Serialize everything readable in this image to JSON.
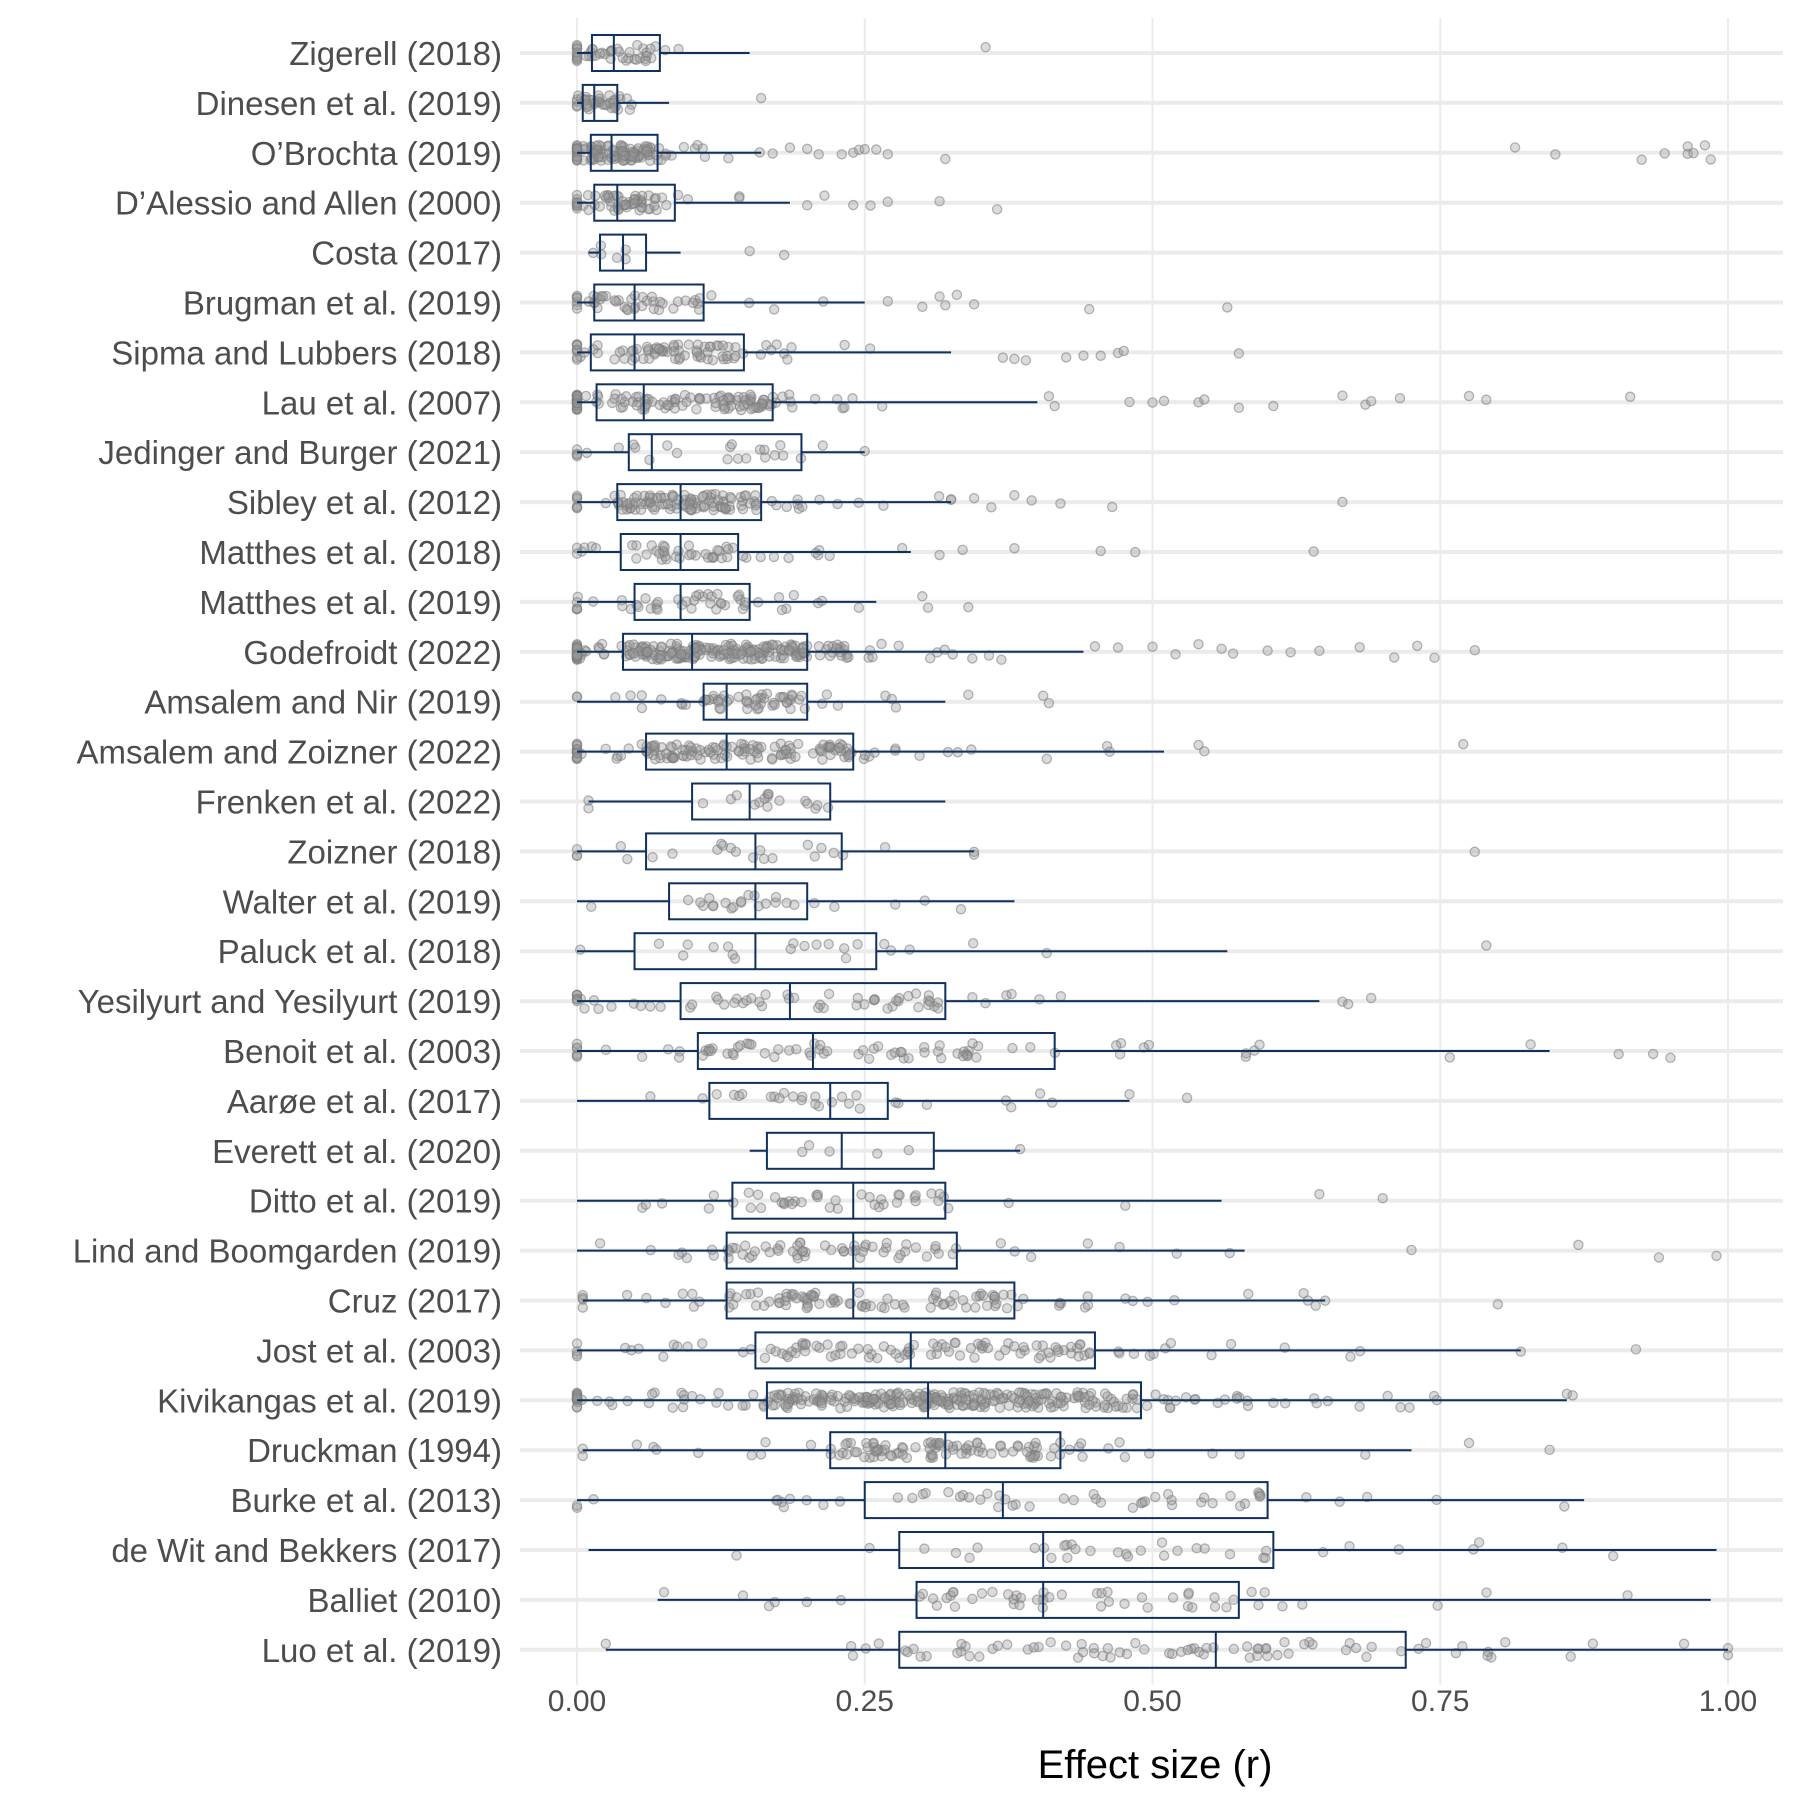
{
  "chart_data": {
    "type": "boxplot",
    "xlabel": "Effect size (r)",
    "xlim": [
      0,
      1
    ],
    "xticks": [
      0,
      0.25,
      0.5,
      0.75,
      1
    ],
    "xtick_labels": [
      "0.00",
      "0.25",
      "0.50",
      "0.75",
      "1.00"
    ],
    "grid": true,
    "legend": "none",
    "colors": {
      "box": "#10305e",
      "points": "#999999",
      "grid": "#ebebeb",
      "label": "#4d4d4d"
    },
    "studies": [
      {
        "label": "Zigerell (2018)",
        "whisker_low": 0.0,
        "q1": 0.013,
        "median": 0.032,
        "q3": 0.072,
        "whisker_high": 0.15,
        "n_points": 45,
        "outliers": [
          0.355
        ]
      },
      {
        "label": "Dinesen et al. (2019)",
        "whisker_low": 0.0,
        "q1": 0.005,
        "median": 0.015,
        "q3": 0.035,
        "whisker_high": 0.08,
        "n_points": 40,
        "outliers": [
          0.16
        ]
      },
      {
        "label": "O’Brochta (2019)",
        "whisker_low": 0.0,
        "q1": 0.012,
        "median": 0.03,
        "q3": 0.07,
        "whisker_high": 0.16,
        "n_points": 140,
        "outliers": [
          0.17,
          0.185,
          0.2,
          0.21,
          0.23,
          0.24,
          0.245,
          0.25,
          0.26,
          0.27,
          0.32,
          0.815,
          0.85,
          0.925,
          0.945,
          0.965,
          0.965,
          0.97,
          0.98,
          0.985
        ]
      },
      {
        "label": "D’Alessio and Allen (2000)",
        "whisker_low": 0.0,
        "q1": 0.015,
        "median": 0.035,
        "q3": 0.085,
        "whisker_high": 0.185,
        "n_points": 70,
        "outliers": [
          0.2,
          0.215,
          0.24,
          0.255,
          0.27,
          0.315,
          0.365
        ]
      },
      {
        "label": "Costa (2017)",
        "whisker_low": 0.01,
        "q1": 0.02,
        "median": 0.04,
        "q3": 0.06,
        "whisker_high": 0.09,
        "n_points": 8,
        "outliers": [
          0.15,
          0.18
        ]
      },
      {
        "label": "Brugman et al. (2019)",
        "whisker_low": 0.0,
        "q1": 0.015,
        "median": 0.05,
        "q3": 0.11,
        "whisker_high": 0.25,
        "n_points": 55,
        "outliers": [
          0.27,
          0.3,
          0.315,
          0.32,
          0.33,
          0.345,
          0.445,
          0.565
        ]
      },
      {
        "label": "Sipma and Lubbers (2018)",
        "whisker_low": 0.0,
        "q1": 0.012,
        "median": 0.05,
        "q3": 0.145,
        "whisker_high": 0.325,
        "n_points": 90,
        "outliers": [
          0.37,
          0.38,
          0.39,
          0.425,
          0.44,
          0.455,
          0.47,
          0.475,
          0.575
        ]
      },
      {
        "label": "Lau et al. (2007)",
        "whisker_low": 0.0,
        "q1": 0.017,
        "median": 0.058,
        "q3": 0.17,
        "whisker_high": 0.4,
        "n_points": 140,
        "outliers": [
          0.41,
          0.415,
          0.48,
          0.5,
          0.51,
          0.54,
          0.545,
          0.575,
          0.605,
          0.665,
          0.685,
          0.69,
          0.715,
          0.775,
          0.79,
          0.915
        ]
      },
      {
        "label": "Jedinger and Burger (2021)",
        "whisker_low": 0.0,
        "q1": 0.045,
        "median": 0.065,
        "q3": 0.195,
        "whisker_high": 0.25,
        "n_points": 25,
        "outliers": []
      },
      {
        "label": "Sibley et al. (2012)",
        "whisker_low": 0.0,
        "q1": 0.035,
        "median": 0.09,
        "q3": 0.16,
        "whisker_high": 0.325,
        "n_points": 130,
        "outliers": [
          0.345,
          0.36,
          0.38,
          0.395,
          0.42,
          0.465,
          0.665
        ]
      },
      {
        "label": "Matthes et al. (2018)",
        "whisker_low": 0.0,
        "q1": 0.038,
        "median": 0.09,
        "q3": 0.14,
        "whisker_high": 0.29,
        "n_points": 55,
        "outliers": [
          0.315,
          0.335,
          0.38,
          0.455,
          0.485,
          0.64
        ]
      },
      {
        "label": "Matthes et al. (2019)",
        "whisker_low": 0.0,
        "q1": 0.05,
        "median": 0.09,
        "q3": 0.15,
        "whisker_high": 0.26,
        "n_points": 50,
        "outliers": [
          0.3,
          0.305,
          0.34
        ]
      },
      {
        "label": "Godefroidt (2022)",
        "whisker_low": 0.0,
        "q1": 0.04,
        "median": 0.1,
        "q3": 0.2,
        "whisker_high": 0.44,
        "n_points": 260,
        "outliers": [
          0.45,
          0.47,
          0.5,
          0.52,
          0.54,
          0.56,
          0.57,
          0.6,
          0.62,
          0.645,
          0.68,
          0.71,
          0.73,
          0.745,
          0.78
        ]
      },
      {
        "label": "Amsalem and Nir (2019)",
        "whisker_low": 0.0,
        "q1": 0.11,
        "median": 0.13,
        "q3": 0.2,
        "whisker_high": 0.32,
        "n_points": 65,
        "outliers": [
          0.34,
          0.405,
          0.41
        ]
      },
      {
        "label": "Amsalem and Zoizner (2022)",
        "whisker_low": 0.0,
        "q1": 0.06,
        "median": 0.13,
        "q3": 0.24,
        "whisker_high": 0.51,
        "n_points": 150,
        "outliers": [
          0.54,
          0.545,
          0.77
        ]
      },
      {
        "label": "Frenken et al. (2022)",
        "whisker_low": 0.01,
        "q1": 0.1,
        "median": 0.15,
        "q3": 0.22,
        "whisker_high": 0.32,
        "n_points": 18,
        "outliers": []
      },
      {
        "label": "Zoizner (2018)",
        "whisker_low": 0.0,
        "q1": 0.06,
        "median": 0.155,
        "q3": 0.23,
        "whisker_high": 0.345,
        "n_points": 25,
        "outliers": [
          0.78
        ]
      },
      {
        "label": "Walter et al. (2019)",
        "whisker_low": 0.0,
        "q1": 0.08,
        "median": 0.155,
        "q3": 0.2,
        "whisker_high": 0.38,
        "n_points": 25,
        "outliers": []
      },
      {
        "label": "Paluck et al. (2018)",
        "whisker_low": 0.0,
        "q1": 0.05,
        "median": 0.155,
        "q3": 0.26,
        "whisker_high": 0.565,
        "n_points": 22,
        "outliers": [
          0.79
        ]
      },
      {
        "label": "Yesilyurt and Yesilyurt (2019)",
        "whisker_low": 0.0,
        "q1": 0.09,
        "median": 0.185,
        "q3": 0.32,
        "whisker_high": 0.645,
        "n_points": 65,
        "outliers": [
          0.665,
          0.67,
          0.69
        ]
      },
      {
        "label": "Benoit et al. (2003)",
        "whisker_low": 0.0,
        "q1": 0.105,
        "median": 0.205,
        "q3": 0.415,
        "whisker_high": 0.845,
        "n_points": 80,
        "outliers": [
          0.905,
          0.935,
          0.95
        ]
      },
      {
        "label": "Aarøe et al. (2017)",
        "whisker_low": 0.0,
        "q1": 0.115,
        "median": 0.22,
        "q3": 0.27,
        "whisker_high": 0.48,
        "n_points": 30,
        "outliers": [
          0.53
        ]
      },
      {
        "label": "Everett et al. (2020)",
        "whisker_low": 0.15,
        "q1": 0.165,
        "median": 0.23,
        "q3": 0.31,
        "whisker_high": 0.385,
        "n_points": 6,
        "outliers": []
      },
      {
        "label": "Ditto et al. (2019)",
        "whisker_low": 0.0,
        "q1": 0.135,
        "median": 0.24,
        "q3": 0.32,
        "whisker_high": 0.56,
        "n_points": 45,
        "outliers": [
          0.645,
          0.7
        ]
      },
      {
        "label": "Lind and Boomgarden (2019)",
        "whisker_low": 0.0,
        "q1": 0.13,
        "median": 0.24,
        "q3": 0.33,
        "whisker_high": 0.58,
        "n_points": 70,
        "outliers": [
          0.725,
          0.87,
          0.94,
          0.99
        ]
      },
      {
        "label": "Cruz (2017)",
        "whisker_low": 0.005,
        "q1": 0.13,
        "median": 0.24,
        "q3": 0.38,
        "whisker_high": 0.65,
        "n_points": 110,
        "outliers": [
          0.8
        ]
      },
      {
        "label": "Jost et al. (2003)",
        "whisker_low": 0.0,
        "q1": 0.155,
        "median": 0.29,
        "q3": 0.45,
        "whisker_high": 0.82,
        "n_points": 110,
        "outliers": [
          0.92
        ]
      },
      {
        "label": "Kivikangas et al. (2019)",
        "whisker_low": 0.0,
        "q1": 0.165,
        "median": 0.305,
        "q3": 0.49,
        "whisker_high": 0.86,
        "n_points": 320,
        "outliers": [
          0.865
        ]
      },
      {
        "label": "Druckman (1994)",
        "whisker_low": 0.005,
        "q1": 0.22,
        "median": 0.32,
        "q3": 0.42,
        "whisker_high": 0.725,
        "n_points": 110,
        "outliers": [
          0.775,
          0.845
        ]
      },
      {
        "label": "Burke et al. (2013)",
        "whisker_low": 0.0,
        "q1": 0.25,
        "median": 0.37,
        "q3": 0.6,
        "whisker_high": 0.875,
        "n_points": 55,
        "outliers": []
      },
      {
        "label": "de Wit and Bekkers (2017)",
        "whisker_low": 0.01,
        "q1": 0.28,
        "median": 0.405,
        "q3": 0.605,
        "whisker_high": 0.99,
        "n_points": 35,
        "outliers": []
      },
      {
        "label": "Balliet (2010)",
        "whisker_low": 0.07,
        "q1": 0.295,
        "median": 0.405,
        "q3": 0.575,
        "whisker_high": 0.985,
        "n_points": 55,
        "outliers": []
      },
      {
        "label": "Luo et al. (2019)",
        "whisker_low": 0.025,
        "q1": 0.28,
        "median": 0.555,
        "q3": 0.72,
        "whisker_high": 1.0,
        "n_points": 80,
        "outliers": []
      }
    ]
  }
}
